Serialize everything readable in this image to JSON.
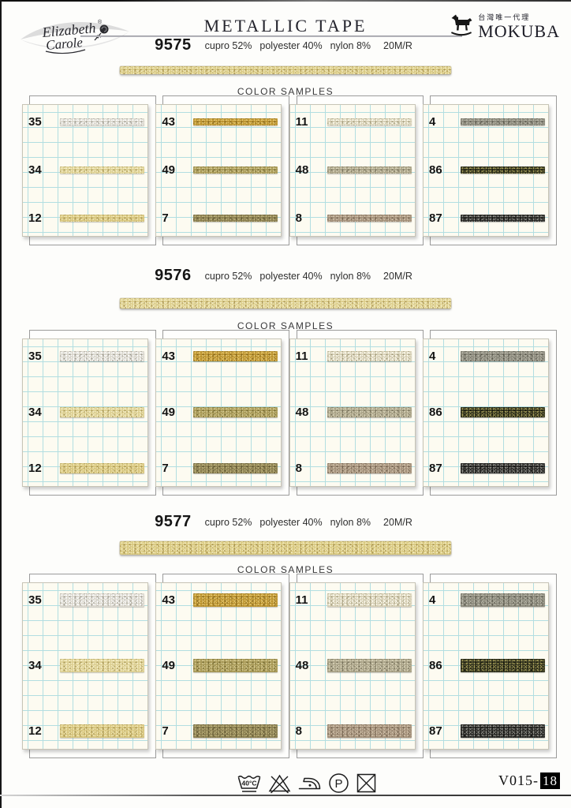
{
  "page": {
    "brand": {
      "line1": "Elizabeth",
      "line2": "Carole",
      "registered": "®"
    },
    "title": "METALLIC TAPE",
    "distributor": {
      "tagline": "台灣唯一代理",
      "name": "MOKUBA"
    },
    "color_samples_label": "COLOR SAMPLES",
    "footer": {
      "wash_label": "40°C",
      "dry_clean_label": "P",
      "page_code_prefix": "V015-",
      "page_number": "18"
    }
  },
  "products": [
    {
      "item_no": "9575",
      "composition": {
        "c1": "cupro 52%",
        "c2": "polyester 40%",
        "c3": "nylon 8%",
        "c4": "20M/R"
      },
      "tape_colors": {
        "base": "#d9ca85",
        "dark": "#a8924f",
        "light": "#f3ebbf"
      }
    },
    {
      "item_no": "9576",
      "composition": {
        "c1": "cupro 52%",
        "c2": "polyester 40%",
        "c3": "nylon 8%",
        "c4": "20M/R"
      },
      "tape_colors": {
        "base": "#ddcf8d",
        "dark": "#ab9655",
        "light": "#f5eec6"
      }
    },
    {
      "item_no": "9577",
      "composition": {
        "c1": "cupro 52%",
        "c2": "polyester 40%",
        "c3": "nylon 8%",
        "c4": "20M/R"
      },
      "tape_colors": {
        "base": "#d9c981",
        "dark": "#a5904c",
        "light": "#f2e9ba"
      }
    }
  ],
  "sample_columns": [
    [
      {
        "num": "35",
        "base": "#dad7cd",
        "dark": "#9f9c91",
        "light": "#ffffff"
      },
      {
        "num": "34",
        "base": "#dccf92",
        "dark": "#ab9a58",
        "light": "#f7f0c8"
      },
      {
        "num": "12",
        "base": "#d7c57e",
        "dark": "#a6934e",
        "light": "#f1e7b2"
      }
    ],
    [
      {
        "num": "43",
        "base": "#bb9330",
        "dark": "#85661c",
        "light": "#e6c870"
      },
      {
        "num": "49",
        "base": "#a79856",
        "dark": "#756a31",
        "light": "#d5ca90"
      },
      {
        "num": "7",
        "base": "#8b7f51",
        "dark": "#5c532e",
        "light": "#bcb17b"
      }
    ],
    [
      {
        "num": "11",
        "base": "#d6cfb5",
        "dark": "#a29a79",
        "light": "#fffdf0"
      },
      {
        "num": "48",
        "base": "#a9a287",
        "dark": "#76705a",
        "light": "#d8d2b8"
      },
      {
        "num": "8",
        "base": "#a3907a",
        "dark": "#6f5e4b",
        "light": "#cfbfa8"
      }
    ],
    [
      {
        "num": "4",
        "base": "#8b897c",
        "dark": "#57564a",
        "light": "#b8b6a8"
      },
      {
        "num": "86",
        "base": "#33341f",
        "dark": "#14150a",
        "light": "#a49c58"
      },
      {
        "num": "87",
        "base": "#2b2b28",
        "dark": "#0e0e0c",
        "light": "#90908a"
      }
    ]
  ]
}
